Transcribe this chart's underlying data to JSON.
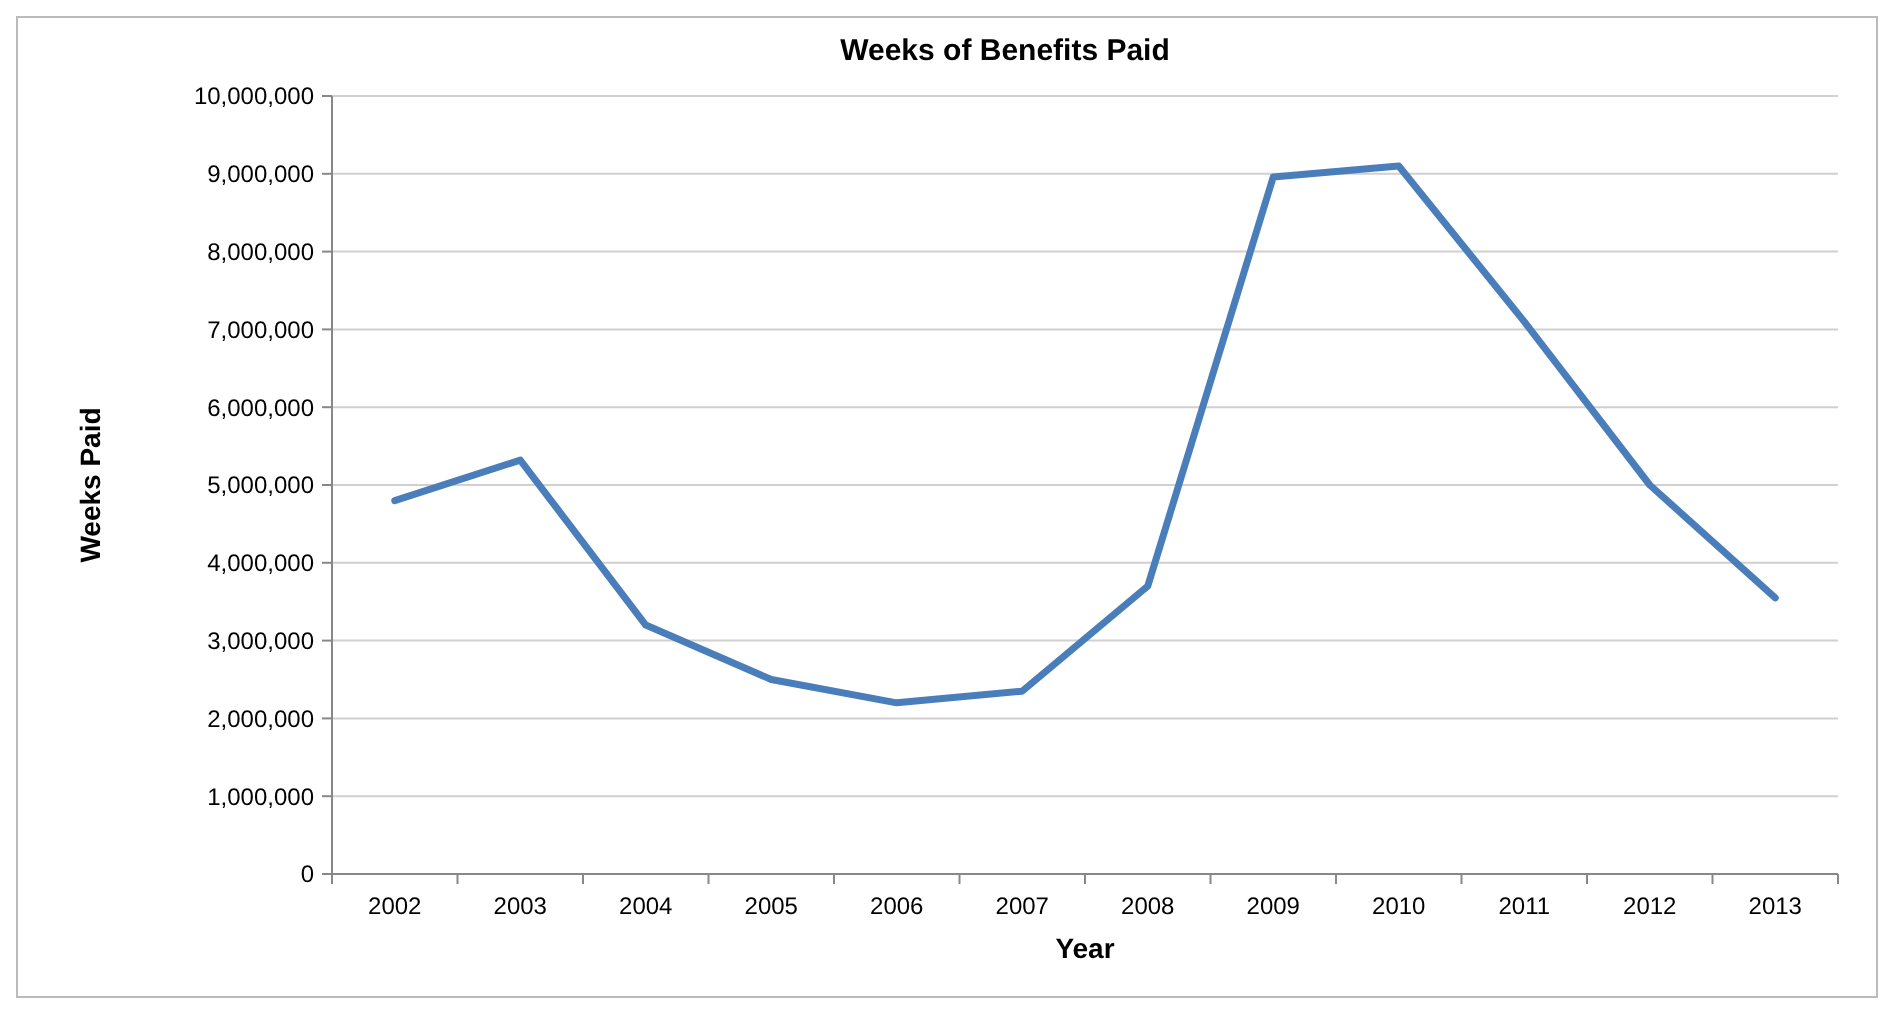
{
  "chart_data": {
    "type": "line",
    "title": "Weeks of Benefits Paid",
    "xlabel": "Year",
    "ylabel": "Weeks Paid",
    "categories": [
      "2002",
      "2003",
      "2004",
      "2005",
      "2006",
      "2007",
      "2008",
      "2009",
      "2010",
      "2011",
      "2012",
      "2013"
    ],
    "series": [
      {
        "color": "#4a7ebb",
        "values": [
          4800000,
          5320000,
          3200000,
          2500000,
          2200000,
          2350000,
          3700000,
          8960000,
          9100000,
          7100000,
          5000000,
          3550000
        ]
      }
    ],
    "ylim": [
      0,
      10000000
    ],
    "yticks": [
      0,
      {
        "value": 1000000,
        "label": "1,000,000"
      },
      {
        "value": 2000000,
        "label": "2,000,000"
      },
      {
        "value": 3000000,
        "label": "3,000,000"
      },
      {
        "value": 4000000,
        "label": "4,000,000"
      },
      {
        "value": 5000000,
        "label": "5,000,000"
      },
      {
        "value": 6000000,
        "label": "6,000,000"
      },
      {
        "value": 7000000,
        "label": "7,000,000"
      },
      {
        "value": 8000000,
        "label": "8,000,000"
      },
      {
        "value": 9000000,
        "label": "9,000,000"
      },
      {
        "value": 10000000,
        "label": "10,000,000"
      }
    ],
    "grid": "y",
    "marker": "none",
    "line_style": "solid"
  }
}
